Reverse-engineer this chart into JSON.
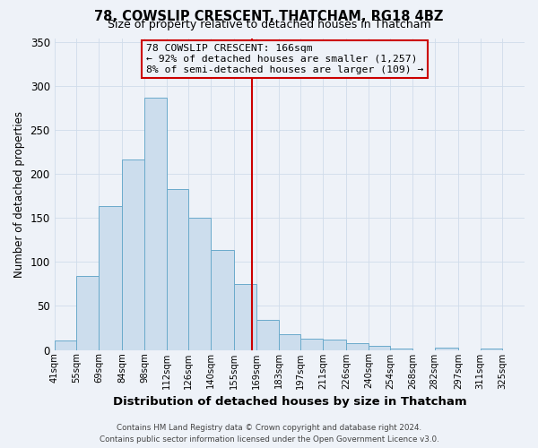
{
  "title": "78, COWSLIP CRESCENT, THATCHAM, RG18 4BZ",
  "subtitle": "Size of property relative to detached houses in Thatcham",
  "xlabel": "Distribution of detached houses by size in Thatcham",
  "ylabel": "Number of detached properties",
  "bin_labels": [
    "41sqm",
    "55sqm",
    "69sqm",
    "84sqm",
    "98sqm",
    "112sqm",
    "126sqm",
    "140sqm",
    "155sqm",
    "169sqm",
    "183sqm",
    "197sqm",
    "211sqm",
    "226sqm",
    "240sqm",
    "254sqm",
    "268sqm",
    "282sqm",
    "297sqm",
    "311sqm",
    "325sqm"
  ],
  "bin_edges": [
    41,
    55,
    69,
    84,
    98,
    112,
    126,
    140,
    155,
    169,
    183,
    197,
    211,
    226,
    240,
    254,
    268,
    282,
    297,
    311,
    325
  ],
  "bar_heights": [
    11,
    84,
    164,
    217,
    287,
    183,
    150,
    114,
    75,
    34,
    18,
    13,
    12,
    8,
    5,
    2,
    0,
    3,
    0,
    2
  ],
  "bar_color": "#ccdded",
  "bar_edge_color": "#6aaacb",
  "bar_edge_width": 0.7,
  "vline_x": 166,
  "vline_color": "#cc0000",
  "ylim": [
    0,
    355
  ],
  "yticks": [
    0,
    50,
    100,
    150,
    200,
    250,
    300,
    350
  ],
  "grid_color": "#d0dcea",
  "annotation_title": "78 COWSLIP CRESCENT: 166sqm",
  "annotation_line1": "← 92% of detached houses are smaller (1,257)",
  "annotation_line2": "8% of semi-detached houses are larger (109) →",
  "annotation_box_color": "#cc0000",
  "footer_line1": "Contains HM Land Registry data © Crown copyright and database right 2024.",
  "footer_line2": "Contains public sector information licensed under the Open Government Licence v3.0.",
  "background_color": "#eef2f8"
}
